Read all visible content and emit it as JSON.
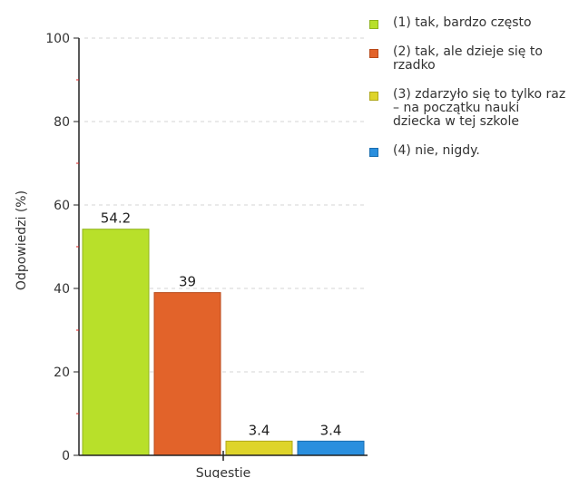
{
  "chart_data": {
    "type": "bar",
    "categories": [
      "Sugestie"
    ],
    "ylabel": "Odpowiedzi (%)",
    "xlabel": "Sugestie",
    "ylim": [
      0,
      100
    ],
    "yticks": [
      0,
      20,
      40,
      60,
      80,
      100
    ],
    "grid": true,
    "legend_position": "right",
    "series": [
      {
        "name": "(1) tak, bardzo często",
        "value": 54.2,
        "label": "54.2",
        "color": "#b8e02a",
        "border": "#8fb31c"
      },
      {
        "name": "(2) tak, ale dzieje się to rzadko",
        "value": 39,
        "label": "39",
        "color": "#e2632a",
        "border": "#b84a1a"
      },
      {
        "name": "(3) zdarzyło się to tylko raz – na początku nauki dziecka w tej szkole",
        "value": 3.4,
        "label": "3.4",
        "color": "#ded42a",
        "border": "#b0a81a"
      },
      {
        "name": "(4) nie, nigdy.",
        "value": 3.4,
        "label": "3.4",
        "color": "#2a8fde",
        "border": "#1a6eb0"
      }
    ]
  }
}
